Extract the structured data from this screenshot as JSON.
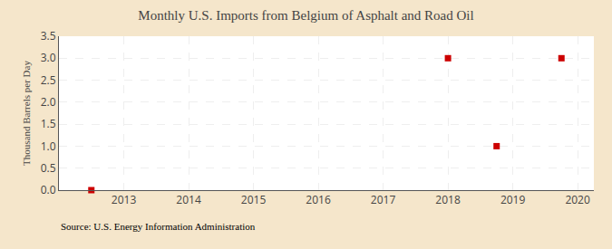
{
  "chart_data": {
    "type": "scatter",
    "title": "Monthly U.S. Imports from Belgium of Asphalt and Road Oil",
    "ylabel": "Thousand Barrels per Day",
    "annotations": [
      "Source: U.S. Energy Information Administration"
    ],
    "x": [
      2012.5,
      2018.0,
      2018.75,
      2019.75
    ],
    "values": [
      0.0,
      3.0,
      1.0,
      3.0
    ],
    "color": "#cc0000",
    "marker": "square",
    "xlim": [
      2012.0,
      2020.25
    ],
    "ylim": [
      0.0,
      3.5
    ],
    "xticks": [
      2013,
      2014,
      2015,
      2016,
      2017,
      2018,
      2019,
      2020
    ],
    "yticks": [
      {
        "value": 0,
        "label": "0.0"
      },
      0.5,
      {
        "value": 1,
        "label": "1.0"
      },
      1.5,
      {
        "value": 2,
        "label": "2.0"
      },
      2.5,
      {
        "value": 3,
        "label": "3.0"
      },
      3.5
    ],
    "grid": true
  }
}
